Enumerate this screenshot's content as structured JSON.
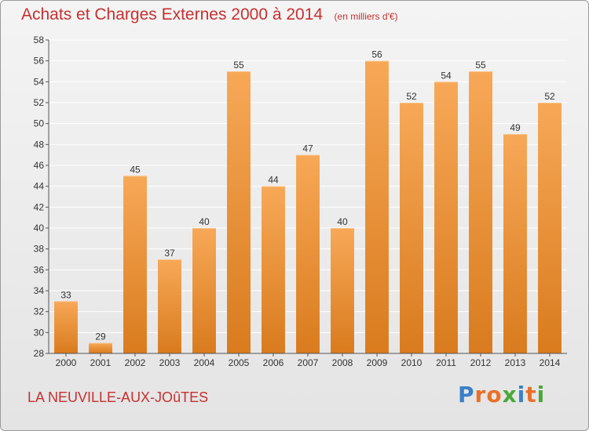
{
  "header": {
    "title": "Achats et Charges Externes 2000 à 2014",
    "subtitle": "(en milliers d'€)"
  },
  "footer": {
    "town": "LA NEUVILLE-AUX-JOûTES",
    "logo": "Proxiti"
  },
  "colors": {
    "title": "#c83030",
    "bar_light": "#f7a857",
    "bar_dark": "#d97b1e",
    "grid": "#ffffff",
    "logo_letters": [
      "#3a80c8",
      "#e8702a",
      "#e8702a",
      "#4aa83a",
      "#3a80c8",
      "#e8702a",
      "#4aa83a"
    ]
  },
  "chart_data": {
    "type": "bar",
    "title": "Achats et Charges Externes 2000 à 2014",
    "subtitle": "(en milliers d'€)",
    "categories": [
      "2000",
      "2001",
      "2002",
      "2003",
      "2004",
      "2005",
      "2006",
      "2007",
      "2008",
      "2009",
      "2010",
      "2011",
      "2012",
      "2013",
      "2014"
    ],
    "values": [
      33,
      29,
      45,
      37,
      40,
      55,
      44,
      47,
      40,
      56,
      52,
      54,
      55,
      49,
      52
    ],
    "value_labels": [
      "33",
      "29",
      "45",
      "37",
      "40",
      "55",
      "44",
      "47",
      "40",
      "56",
      "52",
      "54",
      "55",
      "49",
      "52"
    ],
    "ylim": [
      28,
      58
    ],
    "yticks": [
      28,
      30,
      32,
      34,
      36,
      38,
      40,
      42,
      44,
      46,
      48,
      50,
      52,
      54,
      56,
      58
    ],
    "ytick_labels": [
      "28",
      "30",
      "32",
      "34",
      "36",
      "38",
      "40",
      "42",
      "44",
      "46",
      "48",
      "50",
      "52",
      "54",
      "56",
      "58"
    ],
    "grid": true,
    "legend": "none",
    "xlabel": "",
    "ylabel": ""
  }
}
